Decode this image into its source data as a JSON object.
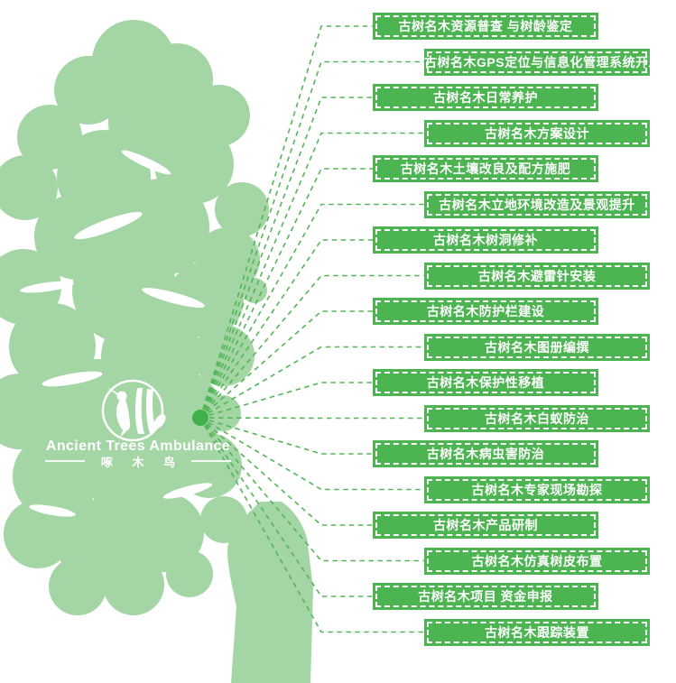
{
  "colors": {
    "canopy": "#a3d5a5",
    "banner_green": "#4cb450",
    "line_green": "#53b657",
    "dot_green": "#3fb04a",
    "text_white": "#ffffff"
  },
  "logo": {
    "title": "Ancient Trees Ambulance",
    "subtitle": "啄 木 鸟"
  },
  "services": [
    "古树名木资源普查 与树龄鉴定",
    "古树名木GPS定位与信息化管理系统开发",
    "古树名木日常养护",
    "古树名木方案设计",
    "古树名木土壤改良及配方施肥",
    "古树名木立地环境改造及景观提升",
    "古树名木树洞修补",
    "古树名木避雷针安装",
    "古树名木防护栏建设",
    "古树名木图册编撰",
    "古树名木保护性移植",
    "古树名木白蚁防治",
    "古树名木病虫害防治",
    "古树名木专家现场勘探",
    "古树名木产品研制",
    "古树名木仿真树皮布置",
    "古树名木项目 资金申报",
    "古树名木跟踪装置"
  ]
}
